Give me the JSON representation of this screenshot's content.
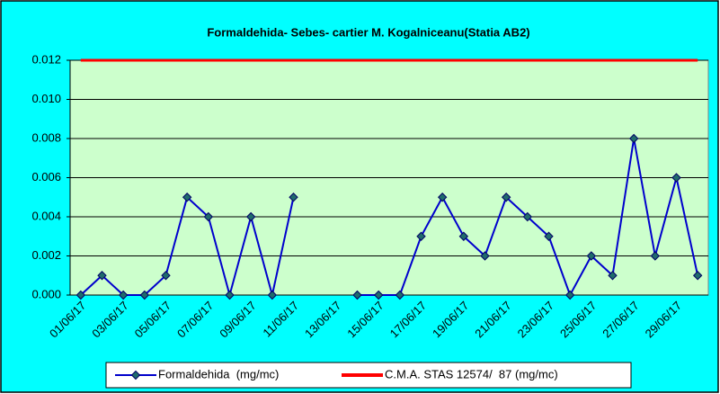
{
  "chart_data": {
    "type": "line",
    "title": "Formaldehida- Sebes- cartier M. Kogalniceanu(Statia AB2)",
    "categories": [
      "01/06/17",
      null,
      "03/06/17",
      null,
      "05/06/17",
      null,
      "07/06/17",
      null,
      "09/06/17",
      null,
      "11/06/17",
      null,
      "13/06/17",
      null,
      "15/06/17",
      null,
      "17/06/17",
      null,
      "19/06/17",
      null,
      "21/06/17",
      null,
      "23/06/17",
      null,
      "25/06/17",
      null,
      "27/06/17",
      null,
      "29/06/17",
      null
    ],
    "series": [
      {
        "name": "Formaldehida  (mg/mc)",
        "color": "#0000cc",
        "values": [
          0,
          0.001,
          0,
          0,
          0.001,
          0.005,
          0.004,
          0,
          0.004,
          0,
          0.005,
          null,
          null,
          0,
          0,
          0,
          0.003,
          0.005,
          0.003,
          0.002,
          0.005,
          0.004,
          0.003,
          0,
          0.002,
          0.001,
          0.008,
          0.002,
          0.006,
          0.001
        ]
      },
      {
        "name": "C.M.A. STAS 12574/  87 (mg/mc)",
        "color": "#ff0000",
        "values": [
          0.012,
          0.012,
          0.012,
          0.012,
          0.012,
          0.012,
          0.012,
          0.012,
          0.012,
          0.012,
          0.012,
          0.012,
          0.012,
          0.012,
          0.012,
          0.012,
          0.012,
          0.012,
          0.012,
          0.012,
          0.012,
          0.012,
          0.012,
          0.012,
          0.012,
          0.012,
          0.012,
          0.012,
          0.012,
          0.012
        ]
      }
    ],
    "ylim": [
      0,
      0.012
    ],
    "yticks": [
      {
        "value": 0,
        "label": "0.000"
      },
      {
        "value": 0.002,
        "label": "0.002"
      },
      {
        "value": 0.004,
        "label": "0.004"
      },
      {
        "value": 0.006,
        "label": "0.006"
      },
      {
        "value": 0.008,
        "label": "0.008"
      },
      {
        "value": 0.01,
        "label": "0.010"
      },
      {
        "value": 0.012,
        "label": "0.012"
      }
    ],
    "grid": true,
    "legend": "bottom"
  }
}
